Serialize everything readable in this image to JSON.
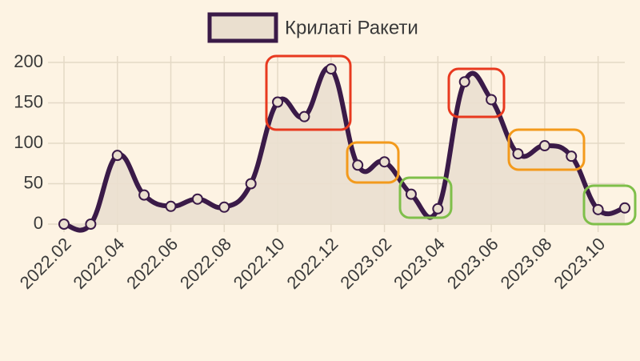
{
  "chart_data": {
    "type": "line",
    "categories": [
      "2022.02",
      null,
      "2022.04",
      null,
      "2022.06",
      null,
      "2022.08",
      null,
      "2022.10",
      null,
      "2022.12",
      null,
      "2023.02",
      null,
      "2023.04",
      null,
      "2023.06",
      null,
      "2023.08",
      null,
      "2023.10",
      null
    ],
    "series": [
      {
        "name": "Крилаті Ракети",
        "color": "#3a1a48",
        "fill": "#eadfcf",
        "values": [
          0,
          0,
          85,
          36,
          22,
          31,
          21,
          50,
          151,
          133,
          192,
          73,
          77,
          37,
          19,
          176,
          154,
          87,
          97,
          84,
          18,
          20
        ]
      }
    ],
    "ylim": [
      0,
      200
    ],
    "yticks": [
      0,
      50,
      100,
      150,
      200
    ],
    "grid": true
  }
}
